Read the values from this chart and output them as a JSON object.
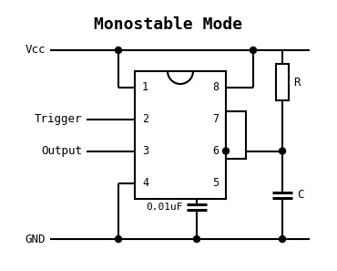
{
  "title": "Monostable Mode",
  "title_fontsize": 13,
  "background_color": "#ffffff",
  "line_color": "#000000",
  "labels": {
    "vcc": "Vcc",
    "gnd": "GND",
    "trigger": "Trigger",
    "output": "Output",
    "resistor": "R",
    "capacitor": "C",
    "cap_value": "0.01uF"
  }
}
